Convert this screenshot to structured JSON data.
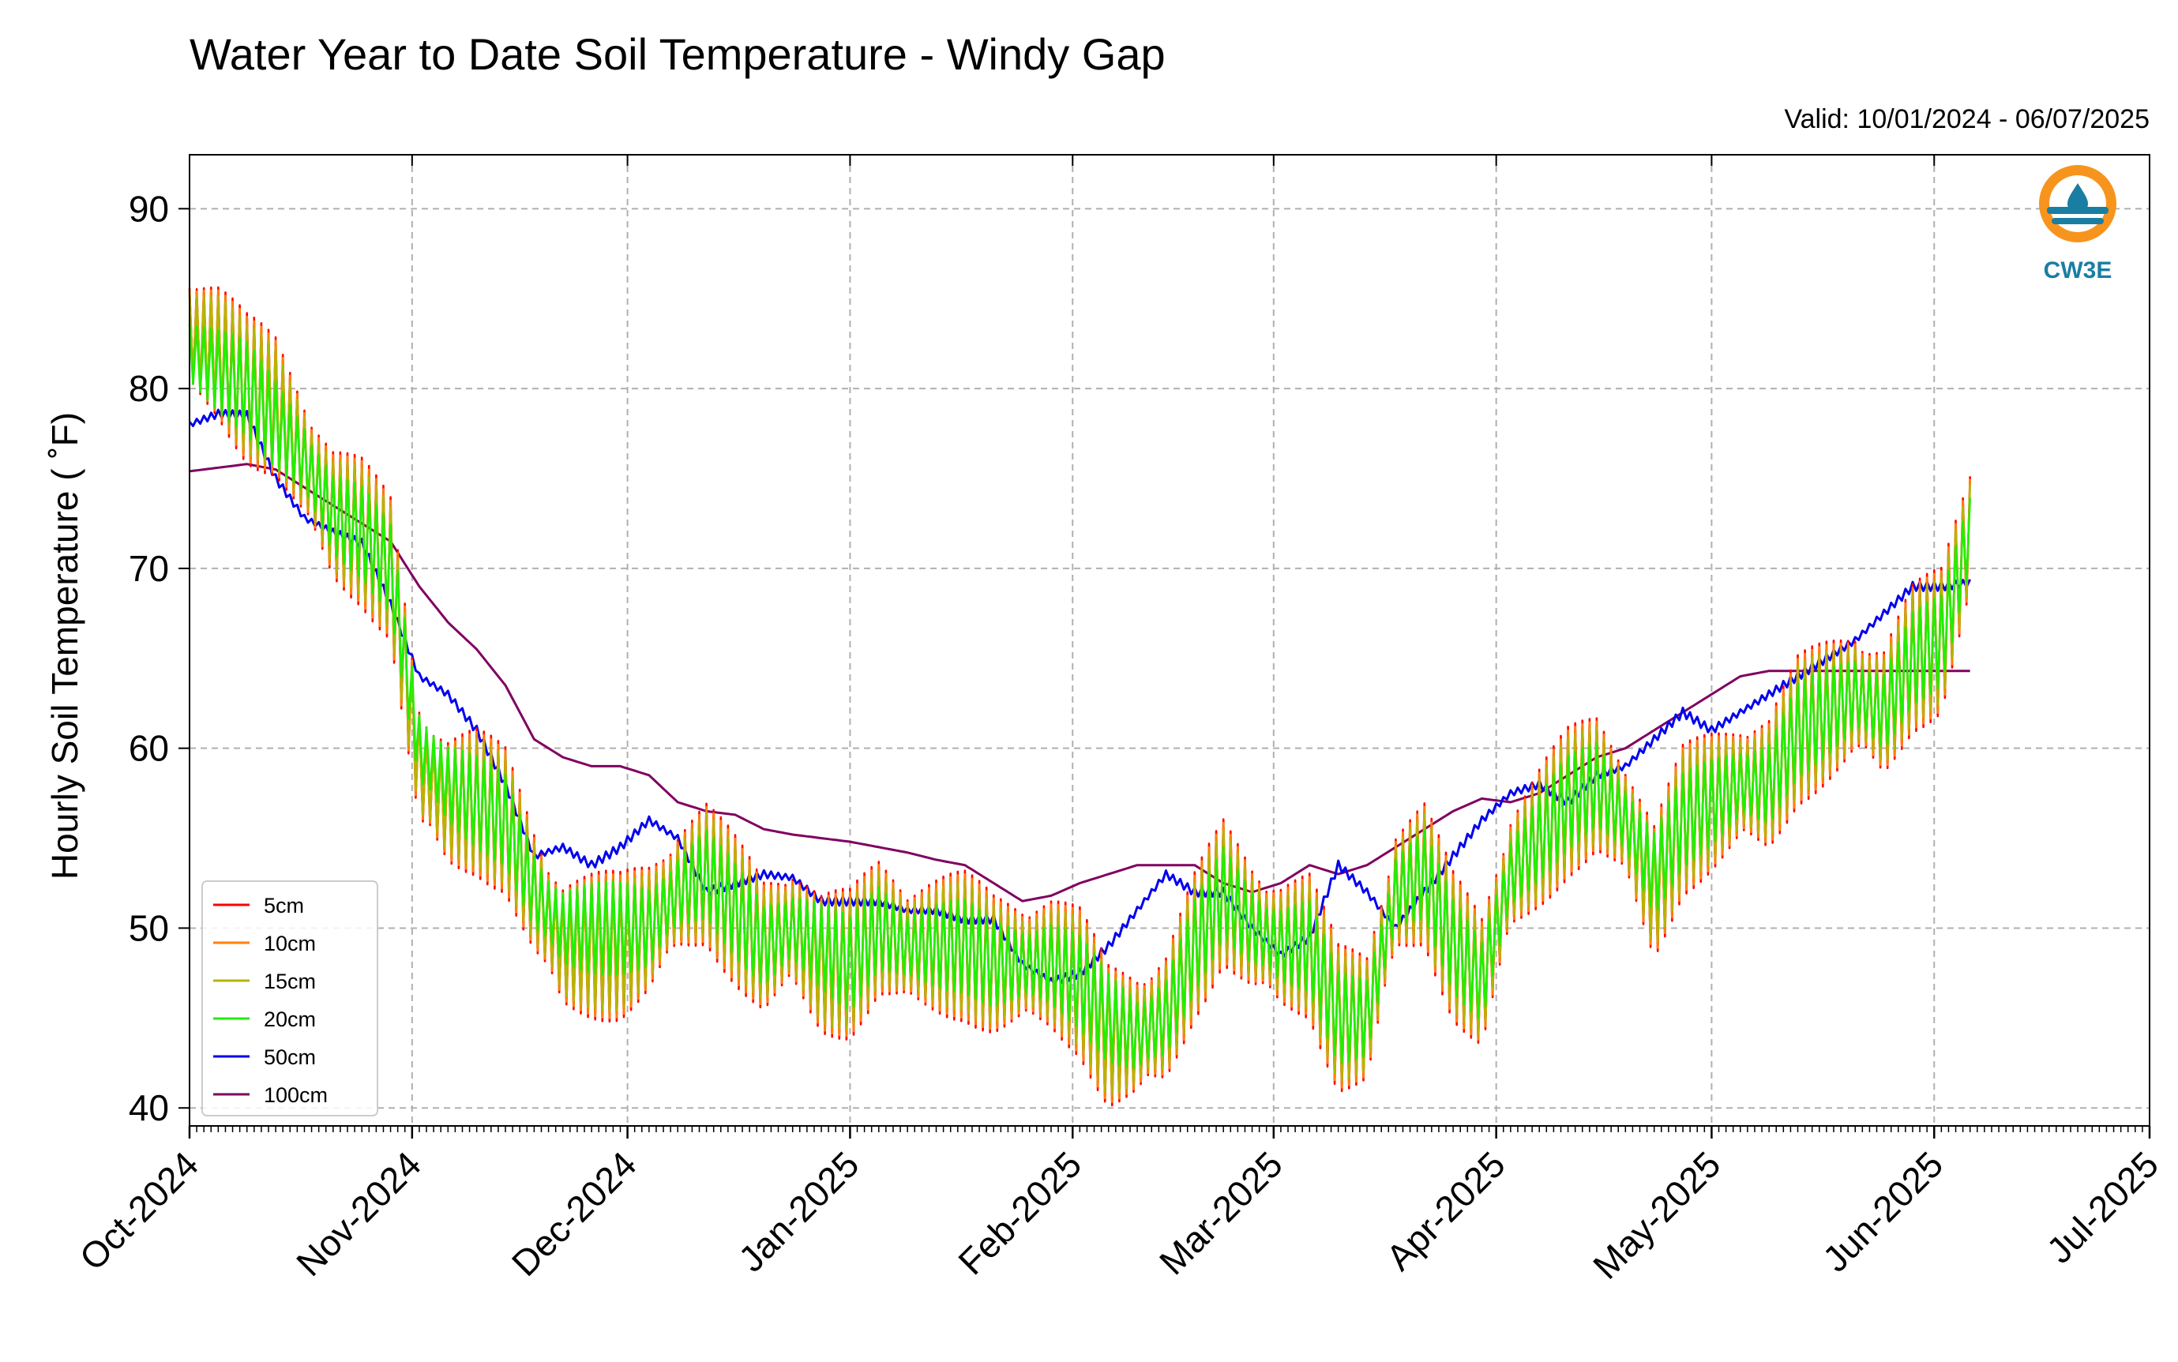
{
  "chart_data": {
    "type": "line",
    "title": "Water Year to Date Soil Temperature - Windy Gap",
    "subtitle": "Valid: 10/01/2024 - 06/07/2025",
    "xlabel": "",
    "ylabel": "Hourly Soil Temperature ( ˚F)",
    "xlim": [
      "2024-10-01",
      "2025-07-01"
    ],
    "ylim": [
      39,
      93
    ],
    "grid": true,
    "legend_position": "lower-left",
    "x_tick_labels": [
      "Oct-2024",
      "Nov-2024",
      "Dec-2024",
      "Jan-2025",
      "Feb-2025",
      "Mar-2025",
      "Apr-2025",
      "May-2025",
      "Jun-2025",
      "Jul-2025"
    ],
    "x_tick_dates": [
      "2024-10-01",
      "2024-11-01",
      "2024-12-01",
      "2025-01-01",
      "2025-02-01",
      "2025-03-01",
      "2025-04-01",
      "2025-05-01",
      "2025-06-01",
      "2025-07-01"
    ],
    "y_ticks": [
      40,
      50,
      60,
      70,
      80,
      90
    ],
    "x": [
      "2024-10-01",
      "2024-10-05",
      "2024-10-09",
      "2024-10-13",
      "2024-10-17",
      "2024-10-21",
      "2024-10-25",
      "2024-10-29",
      "2024-11-02",
      "2024-11-06",
      "2024-11-10",
      "2024-11-14",
      "2024-11-18",
      "2024-11-22",
      "2024-11-26",
      "2024-11-30",
      "2024-12-04",
      "2024-12-08",
      "2024-12-12",
      "2024-12-16",
      "2024-12-20",
      "2024-12-24",
      "2024-12-28",
      "2025-01-01",
      "2025-01-05",
      "2025-01-09",
      "2025-01-13",
      "2025-01-17",
      "2025-01-21",
      "2025-01-25",
      "2025-01-29",
      "2025-02-02",
      "2025-02-06",
      "2025-02-10",
      "2025-02-14",
      "2025-02-18",
      "2025-02-22",
      "2025-02-26",
      "2025-03-02",
      "2025-03-06",
      "2025-03-10",
      "2025-03-14",
      "2025-03-18",
      "2025-03-22",
      "2025-03-26",
      "2025-03-30",
      "2025-04-03",
      "2025-04-07",
      "2025-04-11",
      "2025-04-15",
      "2025-04-19",
      "2025-04-23",
      "2025-04-27",
      "2025-05-01",
      "2025-05-05",
      "2025-05-09",
      "2025-05-13",
      "2025-05-17",
      "2025-05-21",
      "2025-05-25",
      "2025-05-29",
      "2025-06-02",
      "2025-06-06"
    ],
    "series": [
      {
        "name": "5cm",
        "color": "#ff0000",
        "values": [
          83,
          82,
          80,
          79,
          76,
          73,
          72,
          70,
          59,
          57,
          57,
          56,
          52,
          49,
          49,
          49,
          50,
          52,
          53,
          51,
          49,
          50,
          48,
          48,
          50,
          49,
          49,
          49,
          48,
          48,
          48,
          47,
          44,
          44,
          45,
          49,
          52,
          50,
          49,
          49,
          45,
          45,
          52,
          53,
          49,
          47,
          53,
          55,
          57,
          58,
          56,
          52,
          56,
          57,
          58,
          58,
          61,
          62,
          63,
          62,
          65,
          66,
          72
        ]
      },
      {
        "name": "10cm",
        "color": "#ff8000",
        "values": [
          83,
          82,
          80,
          79,
          76,
          73,
          72,
          70,
          59,
          57,
          57,
          56,
          52,
          49,
          49,
          49,
          50,
          52,
          53,
          51,
          49,
          50,
          48,
          48,
          50,
          49,
          49,
          49,
          48,
          48,
          48,
          47,
          44,
          44,
          45,
          49,
          52,
          50,
          49,
          49,
          45,
          45,
          52,
          53,
          49,
          47,
          53,
          55,
          57,
          58,
          56,
          52,
          56,
          57,
          58,
          58,
          61,
          62,
          63,
          62,
          65,
          66,
          72
        ]
      },
      {
        "name": "15cm",
        "color": "#b5b500",
        "values": [
          83,
          82,
          80,
          79,
          76,
          73,
          72,
          70,
          59,
          57,
          57,
          56,
          52,
          49,
          49,
          49,
          50,
          52,
          53,
          51,
          49,
          50,
          48,
          48,
          50,
          49,
          49,
          49,
          48,
          48,
          48,
          47,
          44,
          44,
          45,
          49,
          52,
          50,
          49,
          49,
          45,
          45,
          52,
          53,
          49,
          47,
          53,
          55,
          57,
          58,
          56,
          52,
          56,
          57,
          58,
          58,
          61,
          62,
          63,
          62,
          65,
          66,
          72
        ]
      },
      {
        "name": "20cm",
        "color": "#22ee00",
        "values": [
          82,
          81,
          80,
          78,
          76,
          73,
          72,
          70,
          60,
          58,
          57,
          56,
          52,
          50,
          50,
          50,
          50,
          52,
          53,
          51,
          49,
          50,
          49,
          48,
          50,
          49,
          49,
          49,
          48,
          48,
          48,
          47,
          45,
          44,
          45,
          49,
          52,
          50,
          49,
          49,
          45,
          45,
          52,
          53,
          49,
          47,
          53,
          55,
          57,
          58,
          56,
          53,
          56,
          57,
          58,
          58,
          61,
          62,
          63,
          62,
          65,
          66,
          72
        ]
      },
      {
        "name": "50cm",
        "color": "#0000ee",
        "values": [
          78,
          78.6,
          78.5,
          75,
          72.8,
          72,
          71.4,
          68,
          64,
          63,
          61,
          58,
          54,
          54.5,
          53.5,
          54.5,
          56,
          55,
          52,
          52.5,
          53,
          52.8,
          51.5,
          51.5,
          51.5,
          51,
          51,
          50.5,
          50.5,
          48,
          47,
          47.5,
          49,
          51,
          53,
          52,
          52,
          50,
          48.5,
          49.5,
          53.5,
          52,
          50,
          52,
          54,
          56,
          57.5,
          58,
          57,
          58.5,
          59,
          60.5,
          62,
          61,
          62,
          63,
          64,
          65,
          66,
          67.5,
          69,
          69,
          69.2
        ]
      },
      {
        "name": "100cm",
        "color": "#800060",
        "values": [
          75.4,
          75.6,
          75.8,
          75.5,
          74.5,
          73.5,
          72.5,
          71.5,
          69,
          67,
          65.5,
          63.5,
          60.5,
          59.5,
          59,
          59,
          58.5,
          57,
          56.5,
          56.3,
          55.5,
          55.2,
          55,
          54.8,
          54.5,
          54.2,
          53.8,
          53.5,
          52.5,
          51.5,
          51.8,
          52.5,
          53,
          53.5,
          53.5,
          53.5,
          52.5,
          52,
          52.5,
          53.5,
          53,
          53.5,
          54.5,
          55.5,
          56.5,
          57.2,
          57,
          57.5,
          58.5,
          59.5,
          60,
          61,
          62,
          63,
          64,
          64.3,
          64.3,
          64.3,
          64.3,
          64.3,
          64.3,
          64.3,
          64.3
        ]
      }
    ]
  },
  "logo": {
    "text": "CW3E",
    "orange": "#f7941d",
    "teal": "#1a7ea2"
  }
}
